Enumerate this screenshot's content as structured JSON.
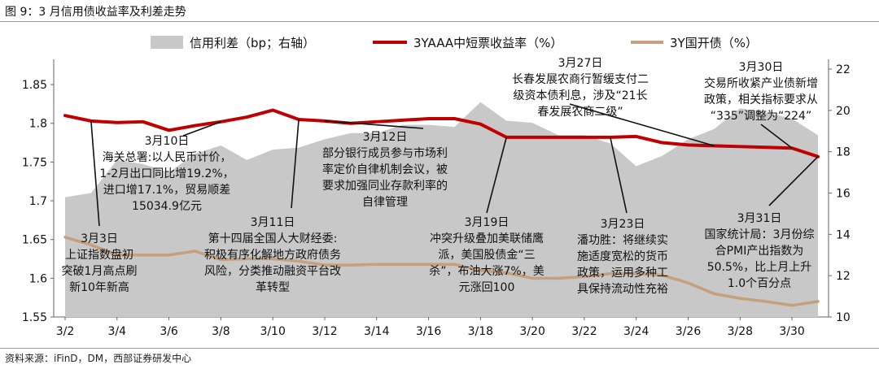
{
  "title": "图 9：3 月信用债收益率及利差走势",
  "source": "资料来源：iFinD，DM，西部证券研发中心",
  "chart_data": {
    "type": "line",
    "categories": [
      "3/2",
      "3/3",
      "3/4",
      "3/5",
      "3/6",
      "3/7",
      "3/8",
      "3/9",
      "3/10",
      "3/11",
      "3/12",
      "3/13",
      "3/14",
      "3/15",
      "3/16",
      "3/17",
      "3/18",
      "3/19",
      "3/20",
      "3/21",
      "3/22",
      "3/23",
      "3/24",
      "3/25",
      "3/26",
      "3/27",
      "3/28",
      "3/29",
      "3/30",
      "3/31"
    ],
    "x_tick_labels": [
      "3/2",
      "3/4",
      "3/6",
      "3/8",
      "3/10",
      "3/12",
      "3/14",
      "3/16",
      "3/18",
      "3/20",
      "3/22",
      "3/24",
      "3/26",
      "3/28",
      "3/30"
    ],
    "y_left": {
      "ticks": [
        "1.55",
        "1.6",
        "1.65",
        "1.7",
        "1.75",
        "1.8",
        "1.85"
      ],
      "min": 1.55,
      "max": 1.87
    },
    "y_right": {
      "ticks": [
        "10",
        "12",
        "14",
        "16",
        "18",
        "20",
        "22"
      ],
      "min": 10,
      "max": 22
    },
    "legend_position": "top",
    "series": [
      {
        "name": "信用利差（bp；右轴）",
        "type": "area",
        "axis": "right",
        "color": "#c8c8c8",
        "values": [
          15.8,
          16.0,
          17.6,
          17.4,
          17.0,
          17.9,
          18.3,
          17.6,
          18.1,
          18.2,
          18.6,
          18.9,
          18.9,
          19.3,
          19.3,
          19.2,
          20.4,
          19.5,
          19.4,
          18.8,
          18.8,
          18.4,
          17.3,
          17.8,
          18.6,
          19.1,
          20.1,
          19.9,
          19.6,
          18.8
        ]
      },
      {
        "name": "3YAAA中短票收益率（%）",
        "type": "line",
        "axis": "left",
        "color": "#c00000",
        "values": [
          1.81,
          1.803,
          1.801,
          1.802,
          1.791,
          1.797,
          1.802,
          1.808,
          1.817,
          1.805,
          1.803,
          1.8,
          1.802,
          1.804,
          1.806,
          1.806,
          1.799,
          1.782,
          1.782,
          1.782,
          1.782,
          1.782,
          1.783,
          1.775,
          1.772,
          1.771,
          1.77,
          1.769,
          1.768,
          1.757
        ]
      },
      {
        "name": "3Y国开债（%）",
        "type": "line",
        "axis": "left",
        "color": "#c4a07c",
        "values": [
          1.653,
          1.643,
          1.63,
          1.63,
          1.63,
          1.635,
          1.624,
          1.625,
          1.625,
          1.622,
          1.617,
          1.617,
          1.618,
          1.618,
          1.618,
          1.618,
          1.61,
          1.607,
          1.6,
          1.6,
          1.602,
          1.606,
          1.606,
          1.604,
          1.594,
          1.58,
          1.574,
          1.57,
          1.565,
          1.57
        ]
      }
    ],
    "annotations": [
      {
        "lines": [
          "3月3日",
          "上证指数盘初",
          "突破1月高点刷",
          "新10年新高"
        ],
        "index": 1,
        "series": 1
      },
      {
        "lines": [
          "3月10日",
          "海关总署:以人民币计价，",
          "1-2月出口同比增19.2%，",
          "进口增17.1%，贸易顺差",
          "15034.9亿元"
        ],
        "index": 6,
        "series": 1
      },
      {
        "lines": [
          "3月11日",
          "第十四届全国人大财经委:",
          "积极有序化解地方政府债务",
          "风险，分类推动融资平台改",
          "革转型"
        ],
        "index": 9,
        "series": 1
      },
      {
        "lines": [
          "3月12日",
          "部分银行成员参与市场利",
          "率定价自律机制会议，被",
          "要求加强同业存款利率的",
          "自律管理"
        ],
        "index": 10,
        "series": 1
      },
      {
        "lines": [
          "3月19日",
          "冲突升级叠加美联储鹰",
          "派，美国股债金“三",
          "杀”，布油大涨7%，美",
          "元涨回100"
        ],
        "index": 17,
        "series": 1
      },
      {
        "lines": [
          "3月23日",
          "潘功胜：将继续实",
          "施适度宽松的货币",
          "政策，运用多种工",
          "具保持流动性充裕"
        ],
        "index": 21,
        "series": 1
      },
      {
        "lines": [
          "3月27日",
          "长春发展农商行暂缓支付二",
          "级资本债利息，涉及“21长",
          "春发展农商二级”"
        ],
        "index": 25,
        "series": 1
      },
      {
        "lines": [
          "3月30日",
          "交易所收紧产业债新增",
          "政策，相关指标要求从",
          "“335”调整为“224”"
        ],
        "index": 28,
        "series": 1
      },
      {
        "lines": [
          "3月31日",
          "国家统计局：3月份综",
          "合PMI产出指数为",
          "50.5%，比上月上升",
          "1.0个百分点"
        ],
        "index": 29,
        "series": 1
      }
    ]
  }
}
